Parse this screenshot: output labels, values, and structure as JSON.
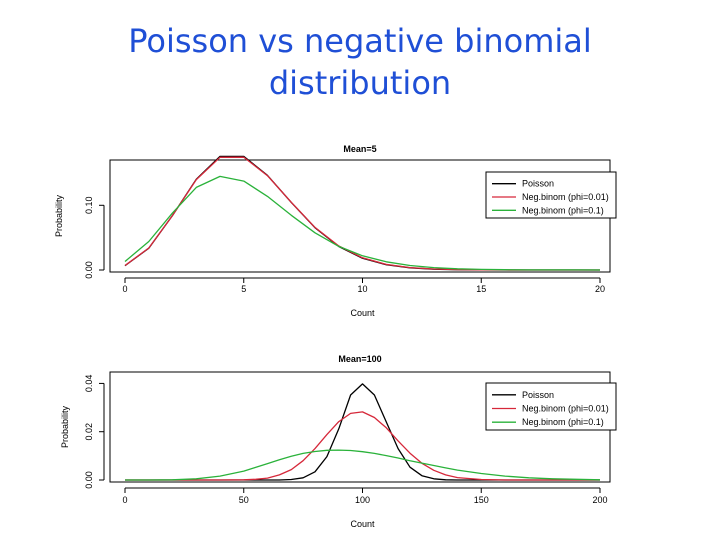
{
  "slide": {
    "title_line1": "Poisson vs negative binomial",
    "title_line2": "distribution"
  },
  "chart_data": [
    {
      "type": "line",
      "title": "Mean=5",
      "xlabel": "Count",
      "ylabel": "Probability",
      "xlim": [
        0,
        20
      ],
      "ylim": [
        0,
        0.17
      ],
      "xticks": [
        "0",
        "5",
        "10",
        "15",
        "20"
      ],
      "yticks": [
        {
          "v": 0.0,
          "label": "0.00"
        },
        {
          "v": 0.1,
          "label": "0.10"
        }
      ],
      "legend_position": "top-right",
      "x": [
        0,
        1,
        2,
        3,
        4,
        5,
        6,
        7,
        8,
        9,
        10,
        11,
        12,
        13,
        14,
        15,
        16,
        17,
        18,
        19,
        20
      ],
      "series": [
        {
          "name": "Poisson",
          "color": "#000000",
          "values": [
            0.0067,
            0.0337,
            0.0842,
            0.1404,
            0.1755,
            0.1755,
            0.1462,
            0.1044,
            0.0653,
            0.0363,
            0.0181,
            0.0082,
            0.0034,
            0.0013,
            0.0005,
            0.0002,
            0.0,
            0.0,
            0.0,
            0.0,
            0.0
          ]
        },
        {
          "name": "Neg.binom (phi=0.01)",
          "color": "#d6283a",
          "values": [
            0.007,
            0.034,
            0.0842,
            0.1397,
            0.1742,
            0.1743,
            0.1458,
            0.1046,
            0.0659,
            0.0371,
            0.0188,
            0.0087,
            0.0037,
            0.0015,
            0.0006,
            0.0002,
            0.0001,
            0.0,
            0.0,
            0.0,
            0.0
          ]
        },
        {
          "name": "Neg.binom (phi=0.1)",
          "color": "#2ab23a",
          "values": [
            0.0132,
            0.0441,
            0.0883,
            0.1276,
            0.1446,
            0.1374,
            0.1138,
            0.0845,
            0.0575,
            0.0365,
            0.0219,
            0.0126,
            0.0069,
            0.0037,
            0.0019,
            0.001,
            0.0005,
            0.0002,
            0.0001,
            0.0001,
            0.0
          ]
        }
      ]
    },
    {
      "type": "line",
      "title": "Mean=100",
      "xlabel": "Count",
      "ylabel": "Probability",
      "xlim": [
        0,
        200
      ],
      "ylim": [
        0,
        0.041
      ],
      "xticks": [
        "0",
        "50",
        "100",
        "150",
        "200"
      ],
      "yticks": [
        {
          "v": 0.0,
          "label": "0.00"
        },
        {
          "v": 0.02,
          "label": "0.02"
        },
        {
          "v": 0.04,
          "label": "0.04"
        }
      ],
      "legend_position": "top-right",
      "x": [
        0,
        10,
        20,
        30,
        40,
        50,
        55,
        60,
        65,
        70,
        75,
        80,
        85,
        90,
        95,
        100,
        105,
        110,
        115,
        120,
        125,
        130,
        135,
        140,
        150,
        160,
        170,
        180,
        190,
        200
      ],
      "series": [
        {
          "name": "Poisson",
          "color": "#000000",
          "values": [
            0,
            0,
            0,
            0,
            0,
            0,
            0,
            0,
            0,
            0.0002,
            0.0009,
            0.0034,
            0.0097,
            0.0212,
            0.0352,
            0.0398,
            0.0352,
            0.024,
            0.013,
            0.0053,
            0.0018,
            0.0005,
            0.0001,
            0,
            0,
            0,
            0,
            0,
            0,
            0
          ]
        },
        {
          "name": "Neg.binom (phi=0.01)",
          "color": "#d6283a",
          "values": [
            0,
            0,
            0,
            0,
            0,
            0.0001,
            0.0003,
            0.0008,
            0.0021,
            0.0043,
            0.008,
            0.013,
            0.0188,
            0.0242,
            0.0276,
            0.0282,
            0.0259,
            0.0216,
            0.0162,
            0.0111,
            0.0069,
            0.004,
            0.0021,
            0.001,
            0.0002,
            0,
            0,
            0,
            0,
            0
          ]
        },
        {
          "name": "Neg.binom (phi=0.1)",
          "color": "#2ab23a",
          "values": [
            0,
            0,
            0.0001,
            0.0005,
            0.0016,
            0.0037,
            0.0052,
            0.0068,
            0.0084,
            0.0098,
            0.011,
            0.0118,
            0.0123,
            0.0124,
            0.0122,
            0.0117,
            0.011,
            0.0101,
            0.0091,
            0.008,
            0.007,
            0.006,
            0.005,
            0.0041,
            0.0027,
            0.0016,
            0.0009,
            0.0005,
            0.0003,
            0.0001
          ]
        }
      ]
    }
  ]
}
